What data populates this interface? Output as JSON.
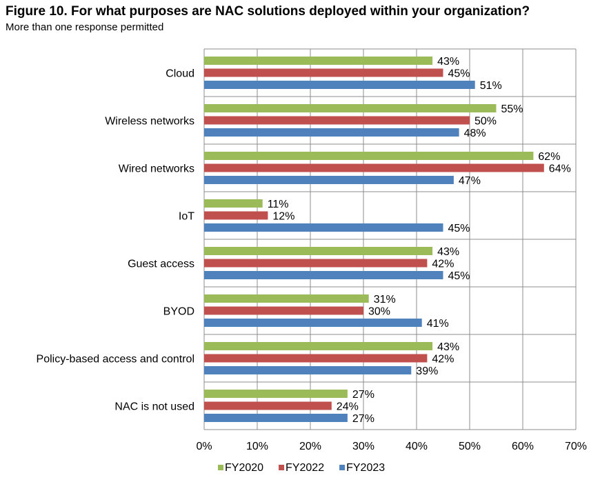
{
  "title": "Figure 10. For what purposes are NAC solutions deployed within your organization?",
  "subtitle": "More than one response permitted",
  "chart_data": {
    "type": "bar",
    "orientation": "horizontal",
    "categories": [
      "Cloud",
      "Wireless networks",
      "Wired networks",
      "IoT",
      "Guest access",
      "BYOD",
      "Policy-based access and control",
      "NAC is not used"
    ],
    "series": [
      {
        "name": "FY2020",
        "color": "#9BBB59",
        "values": [
          43,
          55,
          62,
          11,
          43,
          31,
          43,
          27
        ]
      },
      {
        "name": "FY2022",
        "color": "#C0504D",
        "values": [
          45,
          50,
          64,
          12,
          42,
          30,
          42,
          24
        ]
      },
      {
        "name": "FY2023",
        "color": "#4F81BD",
        "values": [
          51,
          48,
          47,
          45,
          45,
          41,
          39,
          27
        ]
      }
    ],
    "value_suffix": "%",
    "xlim": [
      0,
      70
    ],
    "xticks": [
      "0%",
      "10%",
      "20%",
      "30%",
      "40%",
      "50%",
      "60%",
      "70%"
    ],
    "grid": true,
    "legend_position": "bottom"
  }
}
